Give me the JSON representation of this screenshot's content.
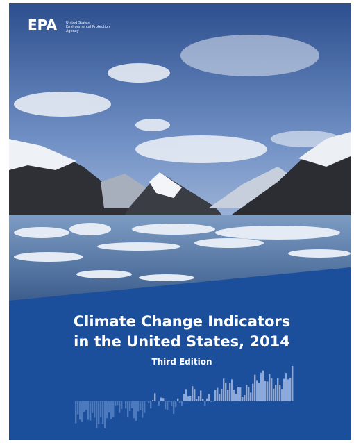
{
  "logo": {
    "mark": "EPA",
    "agency": [
      "United States",
      "Environmental Protection",
      "Agency"
    ]
  },
  "title": [
    "Climate Change Indicators",
    "in the United States, 2014"
  ],
  "edition": "Third Edition"
}
